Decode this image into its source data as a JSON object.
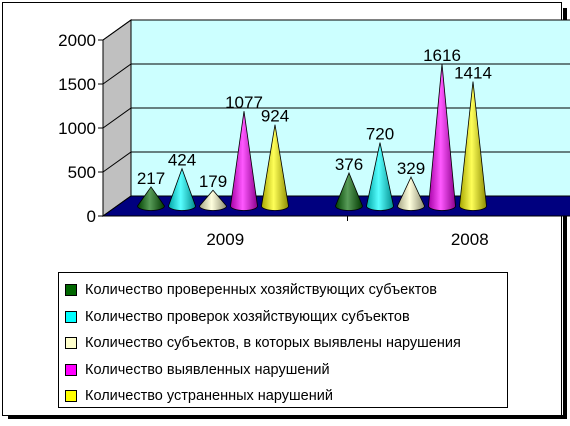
{
  "chart_data": {
    "type": "bar",
    "style": "3d-cone",
    "categories": [
      "2009",
      "2008"
    ],
    "ylim": [
      0,
      2000
    ],
    "yticks": [
      0,
      500,
      1000,
      1500,
      2000
    ],
    "grid": true,
    "legend_position": "bottom",
    "colors": {
      "wall": "#ccffff",
      "floor": "#00007f",
      "grid": "#000000"
    },
    "series": [
      {
        "name": "Количество проверенных хозяйствующих субъектов",
        "color": "#006600",
        "values": [
          217,
          376
        ]
      },
      {
        "name": "Количество проверок хозяйствующих субъектов",
        "color": "#00ffff",
        "values": [
          424,
          720
        ]
      },
      {
        "name": "Количество субъектов, в которых выявлены нарушения",
        "color": "#ffffcc",
        "values": [
          179,
          329
        ]
      },
      {
        "name": "Количество выявленных нарушений",
        "color": "#ff00ff",
        "values": [
          1077,
          1616
        ]
      },
      {
        "name": "Количество устраненных нарушений",
        "color": "#ffff00",
        "values": [
          924,
          1414
        ]
      }
    ]
  }
}
